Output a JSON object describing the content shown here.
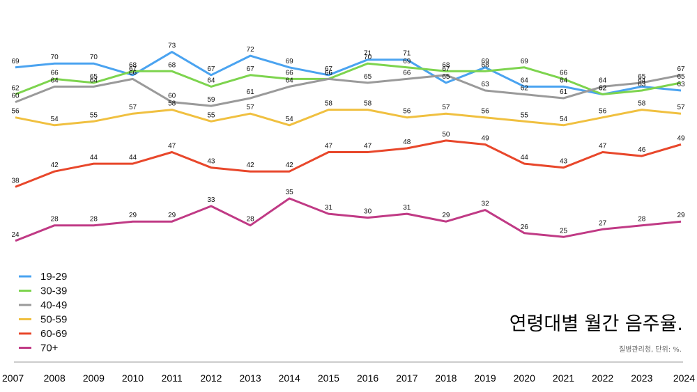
{
  "chart_data": {
    "type": "line",
    "title": "연령대별 월간 음주율.",
    "source": "질병관리청, 단위: %.",
    "xlabel": "",
    "ylabel": "",
    "ylim": [
      20,
      76
    ],
    "legend_position": "bottom-left",
    "grid": false,
    "x": [
      "2007",
      "2008",
      "2009",
      "2010",
      "2011",
      "2012",
      "2013",
      "2014",
      "2015",
      "2016",
      "2017",
      "2018",
      "2019",
      "2020",
      "2021",
      "2022",
      "2023",
      "2024"
    ],
    "series": [
      {
        "name": "19-29",
        "color": "#4aa3f0",
        "values": [
          69,
          70,
          70,
          67,
          73,
          67,
          72,
          69,
          67,
          71,
          71,
          65,
          69,
          64,
          64,
          62,
          64,
          63
        ]
      },
      {
        "name": "30-39",
        "color": "#7dd44e",
        "values": [
          62,
          66,
          65,
          68,
          68,
          64,
          67,
          66,
          66,
          70,
          69,
          68,
          68,
          69,
          66,
          62,
          63,
          65
        ]
      },
      {
        "name": "40-49",
        "color": "#9a9a9a",
        "values": [
          60,
          64,
          64,
          66,
          60,
          59,
          61,
          64,
          66,
          65,
          66,
          67,
          63,
          62,
          61,
          64,
          65,
          67
        ]
      },
      {
        "name": "50-59",
        "color": "#f0c040",
        "values": [
          56,
          54,
          55,
          57,
          58,
          55,
          57,
          54,
          58,
          58,
          56,
          57,
          56,
          55,
          54,
          56,
          58,
          57
        ]
      },
      {
        "name": "60-69",
        "color": "#e8472b",
        "values": [
          38,
          42,
          44,
          44,
          47,
          43,
          42,
          42,
          47,
          47,
          48,
          50,
          49,
          44,
          43,
          47,
          46,
          49
        ]
      },
      {
        "name": "70+",
        "color": "#c03a85",
        "values": [
          24,
          28,
          28,
          29,
          29,
          33,
          28,
          35,
          31,
          30,
          31,
          29,
          32,
          26,
          25,
          27,
          28,
          29
        ]
      }
    ]
  }
}
